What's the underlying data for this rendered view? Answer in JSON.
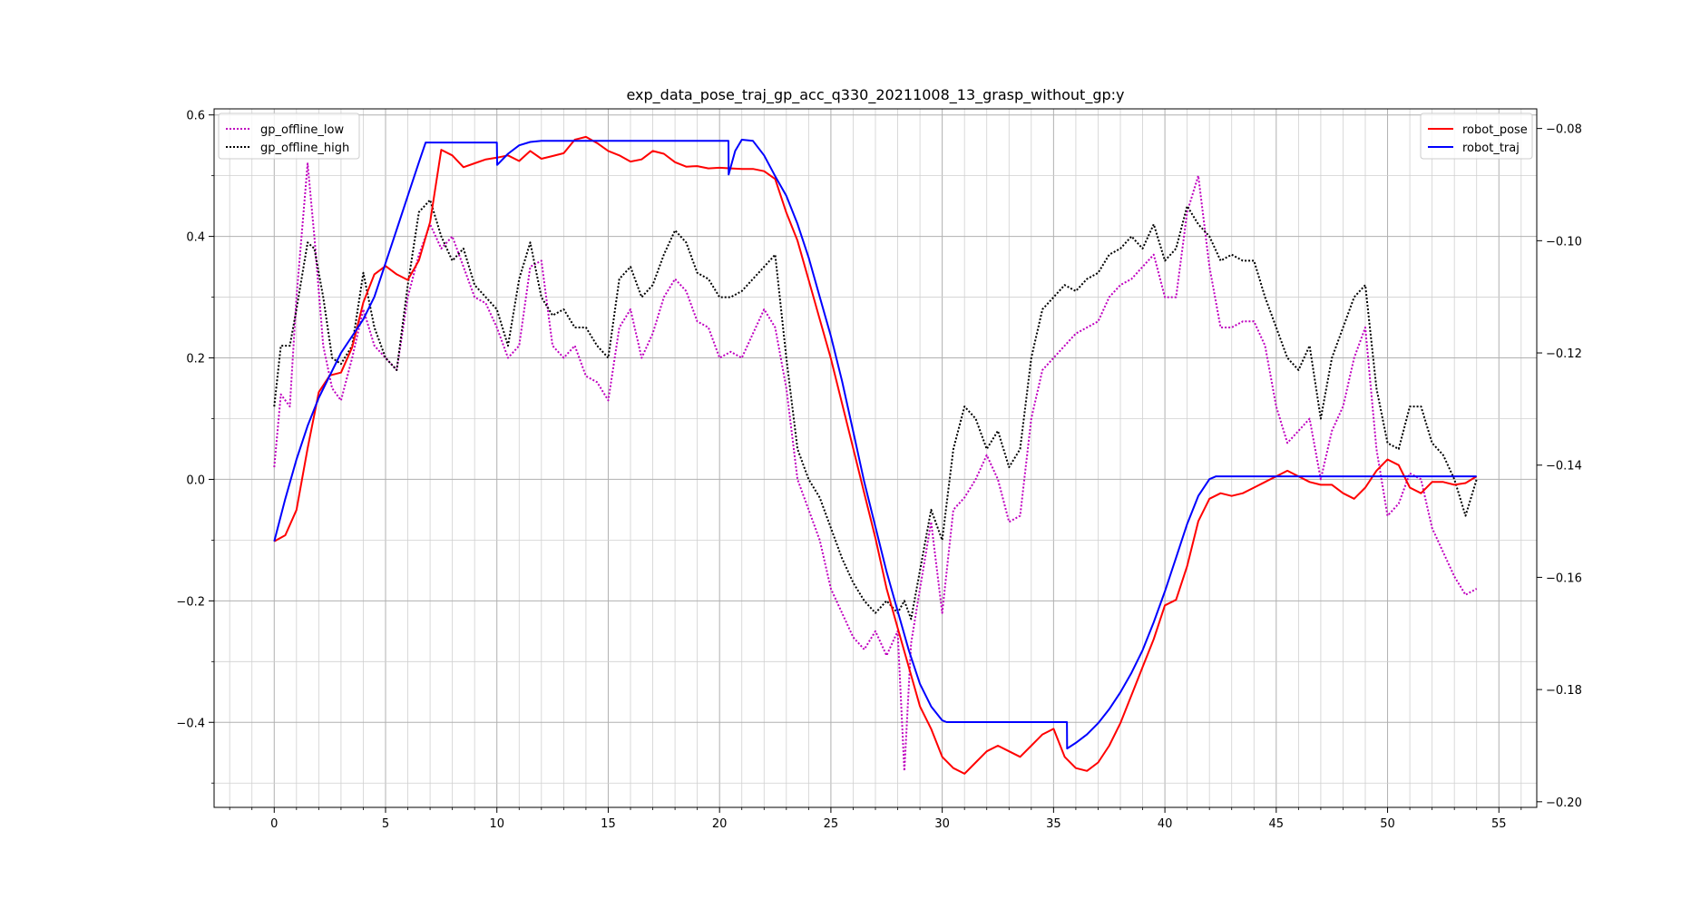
{
  "chart_data": {
    "type": "line",
    "title": "exp_data_pose_traj_gp_acc_q330_20211008_13_grasp_without_gp:y",
    "xlabel": "",
    "ylabel": "",
    "grid": true,
    "xlim": [
      -2.7,
      56.7
    ],
    "ylim_left": [
      -0.54,
      0.61
    ],
    "ylim_right": [
      -0.201,
      -0.0765
    ],
    "x_ticks": [
      0,
      5,
      10,
      15,
      20,
      25,
      30,
      35,
      40,
      45,
      50,
      55
    ],
    "x_tick_labels": [
      "0",
      "5",
      "10",
      "15",
      "20",
      "25",
      "30",
      "35",
      "40",
      "45",
      "50",
      "55"
    ],
    "y_left_ticks": [
      -0.4,
      -0.2,
      0.0,
      0.2,
      0.4,
      0.6
    ],
    "y_left_tick_labels": [
      "−0.4",
      "−0.2",
      "0.0",
      "0.2",
      "0.4",
      "0.6"
    ],
    "y_right_ticks": [
      -0.2,
      -0.18,
      -0.16,
      -0.14,
      -0.12,
      -0.1,
      -0.08
    ],
    "y_right_tick_labels": [
      "−0.20",
      "−0.18",
      "−0.16",
      "−0.14",
      "−0.12",
      "−0.10",
      "−0.08"
    ],
    "legend_left": {
      "placement": "top-left",
      "entries": [
        "gp_offline_low",
        "gp_offline_high"
      ]
    },
    "legend_right": {
      "placement": "top-right",
      "entries": [
        "robot_pose",
        "robot_traj"
      ]
    },
    "series": [
      {
        "name": "gp_offline_low",
        "axis": "left",
        "color": "#bf00bf",
        "style": "dotted",
        "x": [
          0,
          0.3,
          0.7,
          1.0,
          1.5,
          1.8,
          2.2,
          2.6,
          3.0,
          3.5,
          4.0,
          4.5,
          5.0,
          5.5,
          6.0,
          6.5,
          7.0,
          7.5,
          8.0,
          8.5,
          9.0,
          9.5,
          10.0,
          10.5,
          11.0,
          11.5,
          12.0,
          12.5,
          13.0,
          13.5,
          14.0,
          14.5,
          15.0,
          15.5,
          16.0,
          16.5,
          17.0,
          17.5,
          18.0,
          18.5,
          19.0,
          19.5,
          20.0,
          20.5,
          21.0,
          21.5,
          22.0,
          22.5,
          23.0,
          23.5,
          24.0,
          24.5,
          25.0,
          25.5,
          26.0,
          26.5,
          27.0,
          27.5,
          28.0,
          28.3,
          28.6,
          29.0,
          29.5,
          30.0,
          30.5,
          31.0,
          31.5,
          32.0,
          32.5,
          33.0,
          33.5,
          34.0,
          34.5,
          35.0,
          35.5,
          36.0,
          36.5,
          37.0,
          37.5,
          38.0,
          38.5,
          39.0,
          39.5,
          40.0,
          40.5,
          41.0,
          41.5,
          42.0,
          42.5,
          43.0,
          43.5,
          44.0,
          44.5,
          45.0,
          45.5,
          46.0,
          46.5,
          47.0,
          47.5,
          48.0,
          48.5,
          49.0,
          49.5,
          50.0,
          50.5,
          51.0,
          51.5,
          52.0,
          52.5,
          53.0,
          53.5,
          54.0
        ],
        "y": [
          0.02,
          0.14,
          0.12,
          0.3,
          0.52,
          0.4,
          0.22,
          0.15,
          0.13,
          0.2,
          0.28,
          0.22,
          0.2,
          0.18,
          0.3,
          0.37,
          0.42,
          0.38,
          0.4,
          0.35,
          0.3,
          0.29,
          0.25,
          0.2,
          0.22,
          0.35,
          0.36,
          0.22,
          0.2,
          0.22,
          0.17,
          0.16,
          0.13,
          0.25,
          0.28,
          0.2,
          0.24,
          0.3,
          0.33,
          0.31,
          0.26,
          0.25,
          0.2,
          0.21,
          0.2,
          0.24,
          0.28,
          0.25,
          0.15,
          0.0,
          -0.05,
          -0.1,
          -0.18,
          -0.22,
          -0.26,
          -0.28,
          -0.25,
          -0.29,
          -0.25,
          -0.48,
          -0.27,
          -0.18,
          -0.07,
          -0.22,
          -0.05,
          -0.03,
          0.0,
          0.04,
          0.0,
          -0.07,
          -0.06,
          0.1,
          0.18,
          0.2,
          0.22,
          0.24,
          0.25,
          0.26,
          0.3,
          0.32,
          0.33,
          0.35,
          0.37,
          0.3,
          0.3,
          0.44,
          0.5,
          0.35,
          0.25,
          0.25,
          0.26,
          0.26,
          0.22,
          0.12,
          0.06,
          0.08,
          0.1,
          0.0,
          0.08,
          0.12,
          0.2,
          0.25,
          0.05,
          -0.06,
          -0.04,
          0.01,
          0.0,
          -0.08,
          -0.12,
          -0.16,
          -0.19,
          -0.18
        ]
      },
      {
        "name": "gp_offline_high",
        "axis": "left",
        "color": "#000000",
        "style": "dotted",
        "x": [
          0,
          0.3,
          0.7,
          1.0,
          1.5,
          1.8,
          2.2,
          2.6,
          3.0,
          3.5,
          4.0,
          4.5,
          5.0,
          5.5,
          6.0,
          6.5,
          7.0,
          7.5,
          8.0,
          8.5,
          9.0,
          9.5,
          10.0,
          10.5,
          11.0,
          11.5,
          12.0,
          12.5,
          13.0,
          13.5,
          14.0,
          14.5,
          15.0,
          15.5,
          16.0,
          16.5,
          17.0,
          17.5,
          18.0,
          18.5,
          19.0,
          19.5,
          20.0,
          20.5,
          21.0,
          21.5,
          22.0,
          22.5,
          23.0,
          23.5,
          24.0,
          24.5,
          25.0,
          25.5,
          26.0,
          26.5,
          27.0,
          27.5,
          28.0,
          28.3,
          28.6,
          29.0,
          29.5,
          30.0,
          30.5,
          31.0,
          31.5,
          32.0,
          32.5,
          33.0,
          33.5,
          34.0,
          34.5,
          35.0,
          35.5,
          36.0,
          36.5,
          37.0,
          37.5,
          38.0,
          38.5,
          39.0,
          39.5,
          40.0,
          40.5,
          41.0,
          41.5,
          42.0,
          42.5,
          43.0,
          43.5,
          44.0,
          44.5,
          45.0,
          45.5,
          46.0,
          46.5,
          47.0,
          47.5,
          48.0,
          48.5,
          49.0,
          49.5,
          50.0,
          50.5,
          51.0,
          51.5,
          52.0,
          52.5,
          53.0,
          53.5,
          54.0
        ],
        "y": [
          0.12,
          0.22,
          0.22,
          0.28,
          0.39,
          0.38,
          0.3,
          0.2,
          0.19,
          0.22,
          0.34,
          0.25,
          0.2,
          0.18,
          0.32,
          0.44,
          0.46,
          0.4,
          0.36,
          0.38,
          0.32,
          0.3,
          0.28,
          0.22,
          0.33,
          0.39,
          0.3,
          0.27,
          0.28,
          0.25,
          0.25,
          0.22,
          0.2,
          0.33,
          0.35,
          0.3,
          0.32,
          0.37,
          0.41,
          0.39,
          0.34,
          0.33,
          0.3,
          0.3,
          0.31,
          0.33,
          0.35,
          0.37,
          0.2,
          0.05,
          0.0,
          -0.03,
          -0.08,
          -0.13,
          -0.17,
          -0.2,
          -0.22,
          -0.2,
          -0.22,
          -0.2,
          -0.23,
          -0.15,
          -0.05,
          -0.1,
          0.05,
          0.12,
          0.1,
          0.05,
          0.08,
          0.02,
          0.05,
          0.2,
          0.28,
          0.3,
          0.32,
          0.31,
          0.33,
          0.34,
          0.37,
          0.38,
          0.4,
          0.38,
          0.42,
          0.36,
          0.38,
          0.45,
          0.42,
          0.4,
          0.36,
          0.37,
          0.36,
          0.36,
          0.3,
          0.25,
          0.2,
          0.18,
          0.22,
          0.1,
          0.2,
          0.25,
          0.3,
          0.32,
          0.15,
          0.06,
          0.05,
          0.12,
          0.12,
          0.06,
          0.04,
          0.0,
          -0.06,
          0.0
        ]
      },
      {
        "name": "robot_pose",
        "axis": "right",
        "color": "#ff0000",
        "style": "solid",
        "x": [
          0,
          0.5,
          1.0,
          1.5,
          2.0,
          2.5,
          3.0,
          3.5,
          4.0,
          4.5,
          5.0,
          5.5,
          6.0,
          6.5,
          7.0,
          7.5,
          8.0,
          8.5,
          9.0,
          9.5,
          10.0,
          10.5,
          11.0,
          11.5,
          12.0,
          12.5,
          13.0,
          13.5,
          14.0,
          14.5,
          15.0,
          15.5,
          16.0,
          16.5,
          17.0,
          17.5,
          18.0,
          18.5,
          19.0,
          19.5,
          20.0,
          20.5,
          21.0,
          21.5,
          22.0,
          22.5,
          23.0,
          23.5,
          24.0,
          24.5,
          25.0,
          25.5,
          26.0,
          26.5,
          27.0,
          27.5,
          28.0,
          28.5,
          29.0,
          29.5,
          30.0,
          30.5,
          31.0,
          31.5,
          32.0,
          32.5,
          33.0,
          33.5,
          34.0,
          34.5,
          35.0,
          35.5,
          36.0,
          36.5,
          37.0,
          37.5,
          38.0,
          38.5,
          39.0,
          39.5,
          40.0,
          40.5,
          41.0,
          41.5,
          42.0,
          42.5,
          43.0,
          43.5,
          44.0,
          44.5,
          45.0,
          45.5,
          46.0,
          46.5,
          47.0,
          47.5,
          48.0,
          48.5,
          49.0,
          49.5,
          50.0,
          50.5,
          51.0,
          51.5,
          52.0,
          52.5,
          53.0,
          53.5,
          54.0
        ],
        "y": [
          -0.1536,
          -0.1525,
          -0.148,
          -0.137,
          -0.127,
          -0.124,
          -0.1235,
          -0.119,
          -0.111,
          -0.106,
          -0.1045,
          -0.106,
          -0.107,
          -0.1035,
          -0.0967,
          -0.0838,
          -0.0848,
          -0.0869,
          -0.0862,
          -0.0855,
          -0.0852,
          -0.0848,
          -0.0858,
          -0.084,
          -0.0854,
          -0.0849,
          -0.0844,
          -0.082,
          -0.0815,
          -0.0826,
          -0.084,
          -0.0848,
          -0.0859,
          -0.0855,
          -0.084,
          -0.0845,
          -0.086,
          -0.0868,
          -0.0867,
          -0.0871,
          -0.087,
          -0.0871,
          -0.0872,
          -0.0872,
          -0.0876,
          -0.089,
          -0.095,
          -0.1,
          -0.107,
          -0.114,
          -0.121,
          -0.129,
          -0.137,
          -0.145,
          -0.153,
          -0.162,
          -0.169,
          -0.176,
          -0.183,
          -0.187,
          -0.192,
          -0.194,
          -0.195,
          -0.193,
          -0.191,
          -0.19,
          -0.191,
          -0.192,
          -0.19,
          -0.188,
          -0.187,
          -0.192,
          -0.194,
          -0.1945,
          -0.193,
          -0.19,
          -0.186,
          -0.181,
          -0.176,
          -0.171,
          -0.165,
          -0.164,
          -0.158,
          -0.15,
          -0.146,
          -0.145,
          -0.1455,
          -0.145,
          -0.144,
          -0.143,
          -0.142,
          -0.141,
          -0.142,
          -0.143,
          -0.1435,
          -0.1435,
          -0.145,
          -0.146,
          -0.144,
          -0.141,
          -0.139,
          -0.14,
          -0.144,
          -0.145,
          -0.143,
          -0.143,
          -0.1435,
          -0.1432,
          -0.142
        ]
      },
      {
        "name": "robot_traj",
        "axis": "right",
        "color": "#0000ff",
        "style": "solid",
        "x": [
          0,
          0.5,
          1.0,
          1.5,
          2.0,
          2.5,
          3.0,
          3.5,
          4.0,
          4.5,
          5.0,
          5.5,
          6.0,
          6.5,
          6.8,
          7.0,
          8.0,
          9.0,
          10.0,
          10.01,
          10.5,
          11.0,
          11.5,
          12.0,
          13.0,
          14.0,
          15.0,
          16.0,
          17.0,
          18.0,
          19.0,
          20.0,
          20.4,
          20.41,
          20.7,
          21.0,
          21.5,
          22.0,
          22.5,
          23.0,
          23.5,
          24.0,
          24.5,
          25.0,
          25.5,
          26.0,
          26.5,
          27.0,
          27.5,
          28.0,
          28.5,
          29.0,
          29.5,
          30.0,
          30.2,
          31.0,
          32.0,
          33.0,
          34.0,
          35.0,
          35.6,
          35.61,
          36.0,
          36.5,
          37.0,
          37.5,
          38.0,
          38.5,
          39.0,
          39.5,
          40.0,
          40.5,
          41.0,
          41.5,
          42.0,
          42.3,
          43.0,
          44.0,
          45.0,
          46.0,
          47.0,
          48.0,
          49.0,
          50.0,
          51.0,
          52.0,
          53.0,
          54.0
        ],
        "y": [
          -0.1536,
          -0.146,
          -0.139,
          -0.133,
          -0.128,
          -0.124,
          -0.12,
          -0.117,
          -0.114,
          -0.11,
          -0.104,
          -0.098,
          -0.092,
          -0.086,
          -0.0825,
          -0.0825,
          -0.0825,
          -0.0825,
          -0.0825,
          -0.0865,
          -0.0845,
          -0.083,
          -0.0824,
          -0.0822,
          -0.0822,
          -0.0822,
          -0.0822,
          -0.0822,
          -0.0822,
          -0.0822,
          -0.0822,
          -0.0822,
          -0.0822,
          -0.0882,
          -0.084,
          -0.082,
          -0.0822,
          -0.0848,
          -0.0885,
          -0.092,
          -0.097,
          -0.103,
          -0.11,
          -0.117,
          -0.125,
          -0.134,
          -0.143,
          -0.151,
          -0.159,
          -0.166,
          -0.173,
          -0.179,
          -0.183,
          -0.1855,
          -0.1858,
          -0.1858,
          -0.1858,
          -0.1858,
          -0.1858,
          -0.1858,
          -0.1858,
          -0.1905,
          -0.1895,
          -0.188,
          -0.186,
          -0.1835,
          -0.1805,
          -0.177,
          -0.173,
          -0.168,
          -0.1625,
          -0.1565,
          -0.1505,
          -0.1455,
          -0.1425,
          -0.142,
          -0.142,
          -0.142,
          -0.142,
          -0.142,
          -0.142,
          -0.142,
          -0.142,
          -0.142,
          -0.142,
          -0.142,
          -0.142,
          -0.142
        ]
      }
    ]
  }
}
